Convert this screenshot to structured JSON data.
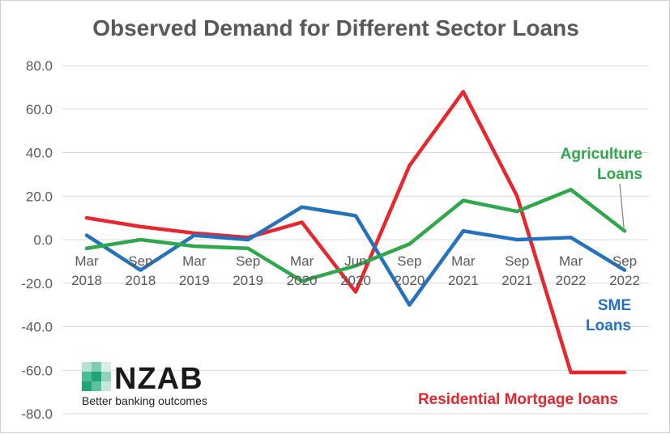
{
  "chart_data": {
    "type": "line",
    "title": "Observed Demand for Different Sector Loans",
    "categories": [
      "Mar 2018",
      "Sep 2018",
      "Mar 2019",
      "Sep 2019",
      "Mar 2020",
      "Jun 2020",
      "Sep 2020",
      "Mar 2021",
      "Sep 2021",
      "Mar 2022",
      "Sep 2022"
    ],
    "x_tick_lines": [
      [
        "Mar",
        "2018"
      ],
      [
        "Sep",
        "2018"
      ],
      [
        "Mar",
        "2019"
      ],
      [
        "Sep",
        "2019"
      ],
      [
        "Mar",
        "2020"
      ],
      [
        "Jun",
        "2020"
      ],
      [
        "Sep",
        "2020"
      ],
      [
        "Mar",
        "2021"
      ],
      [
        "Sep",
        "2021"
      ],
      [
        "Mar",
        "2022"
      ],
      [
        "Sep",
        "2022"
      ]
    ],
    "ylim": [
      -80,
      80
    ],
    "yticks": [
      80,
      60,
      40,
      20,
      0,
      -20,
      -40,
      -60,
      -80
    ],
    "ytick_labels": [
      "80.0",
      "60.0",
      "40.0",
      "20.0",
      "0.0",
      "-20.0",
      "-40.0",
      "-60.0",
      "-80.0"
    ],
    "grid": true,
    "series": [
      {
        "name": "Agriculture Loans",
        "label_lines": [
          "Agriculture",
          "Loans"
        ],
        "color": "#2ea84a",
        "values": [
          -4,
          0,
          -3,
          -4,
          -19,
          -12,
          -2,
          18,
          13,
          23,
          4
        ]
      },
      {
        "name": "SME Loans",
        "label_lines": [
          "SME",
          "Loans"
        ],
        "color": "#2472bf",
        "values": [
          2,
          -14,
          2,
          0,
          15,
          11,
          -30,
          4,
          0,
          1,
          -14
        ]
      },
      {
        "name": "Residential Mortgage loans",
        "label_lines": [
          "Residential Mortgage loans"
        ],
        "color": "#e8262b",
        "values": [
          10,
          6,
          3,
          1,
          8,
          -24,
          34,
          68,
          20,
          -61,
          -61
        ]
      }
    ]
  },
  "logo": {
    "name": "NZAB",
    "tagline": "Better banking outcomes",
    "accent": "#1fa37a"
  }
}
